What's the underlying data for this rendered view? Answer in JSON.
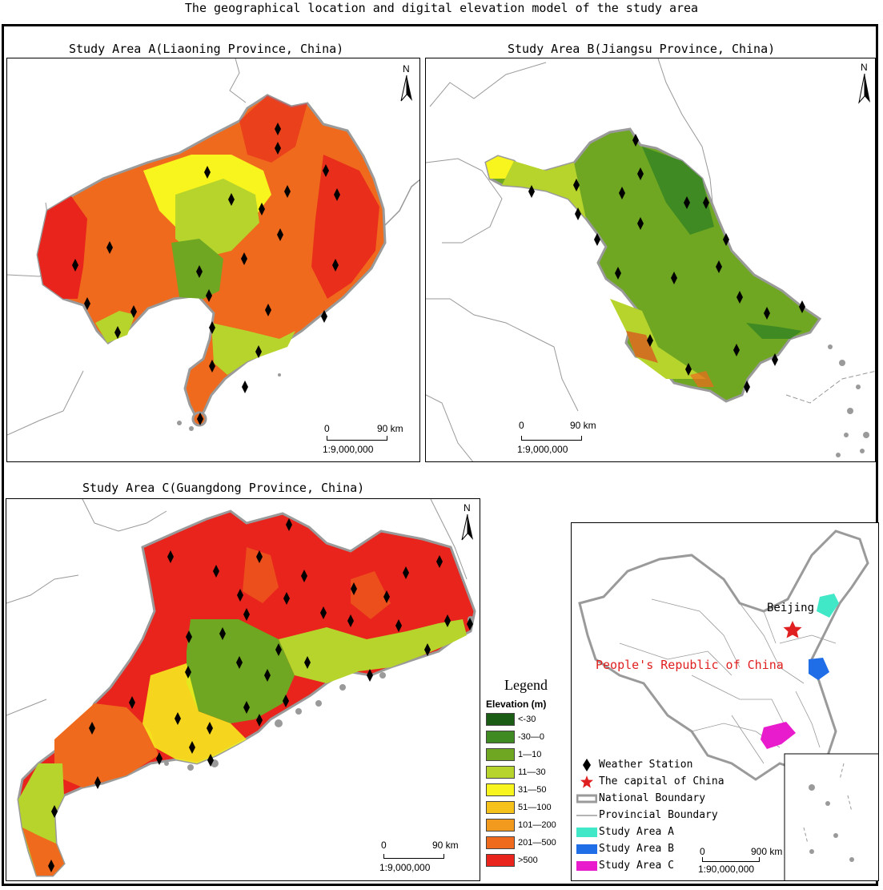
{
  "title": "The geographical location and digital elevation model of the study area",
  "panels": {
    "a": {
      "title": "Study Area A(Liaoning Province, China)",
      "scale_zero": "0",
      "scale_km": "90 km",
      "scale_ratio": "1:9,000,000"
    },
    "b": {
      "title": "Study Area B(Jiangsu Province, China)",
      "scale_zero": "0",
      "scale_km": "90 km",
      "scale_ratio": "1:9,000,000"
    },
    "c": {
      "title": "Study Area C(Guangdong Province, China)",
      "scale_zero": "0",
      "scale_km": "90 km",
      "scale_ratio": "1:9,000,000"
    },
    "inset": {
      "scale_zero": "0",
      "scale_km": "900 km",
      "scale_ratio": "1:90,000,000"
    }
  },
  "north_label": "N",
  "legend": {
    "title": "Legend",
    "subtitle": "Elevation (m)",
    "classes": [
      {
        "label": "<-30",
        "color": "#1a5c14"
      },
      {
        "label": "-30—0",
        "color": "#3f8a22"
      },
      {
        "label": "1—10",
        "color": "#6fa722"
      },
      {
        "label": "11—30",
        "color": "#b6d42c"
      },
      {
        "label": "31—50",
        "color": "#f7f51d"
      },
      {
        "label": "51—100",
        "color": "#f5c21c"
      },
      {
        "label": "101—200",
        "color": "#f29a1e"
      },
      {
        "label": "201—500",
        "color": "#ef6a1c"
      },
      {
        "label": ">500",
        "color": "#e8241c"
      }
    ]
  },
  "inset_legend": [
    {
      "label": "Weather Station",
      "symbol": "diamond-icon"
    },
    {
      "label": "The capital of China",
      "symbol": "star-icon",
      "color": "#e02020"
    },
    {
      "label": "National Boundary",
      "symbol": "national-boundary-icon"
    },
    {
      "label": "Provincial Boundary",
      "symbol": "provincial-boundary-icon"
    },
    {
      "label": "Study Area A",
      "symbol": "swatch",
      "color": "#40e8c8"
    },
    {
      "label": "Study Area B",
      "symbol": "swatch",
      "color": "#1f6ee8"
    },
    {
      "label": "Study Area C",
      "symbol": "swatch",
      "color": "#e81ccc"
    }
  ],
  "inset_labels": {
    "capital": "Beijing",
    "country": "People's Republic of China",
    "country_color": "#e02020"
  }
}
